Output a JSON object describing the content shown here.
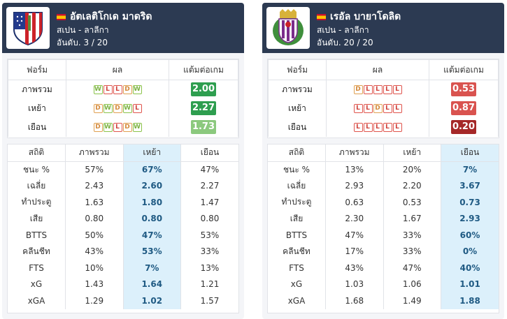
{
  "colors": {
    "header_bg": "#2c3a52",
    "highlight_col": "#dcf0fb",
    "win": "#7cb342",
    "draw": "#d4893a",
    "loss": "#d0413a"
  },
  "team_a": {
    "name": "อัตเลติโกเด มาดริด",
    "league": "สเปน - ลาลีกา",
    "rank": "อันดับ. 3 / 20",
    "logo_icon": "atletico-madrid-crest-icon",
    "form_headers": [
      "ฟอร์ม",
      "ผล",
      "แต้มต่อเกม"
    ],
    "form_rows": [
      {
        "label": "ภาพรวม",
        "results": [
          "W",
          "L",
          "L",
          "D",
          "W"
        ],
        "ppg": "2.00",
        "ppg_color": "#2e9e4f"
      },
      {
        "label": "เหย้า",
        "results": [
          "D",
          "W",
          "D",
          "W",
          "L"
        ],
        "ppg": "2.27",
        "ppg_color": "#2e9e4f"
      },
      {
        "label": "เยือน",
        "results": [
          "D",
          "W",
          "L",
          "D",
          "W"
        ],
        "ppg": "1.73",
        "ppg_color": "#8cc97e"
      }
    ],
    "stat_headers": [
      "สถิติ",
      "ภาพรวม",
      "เหย้า",
      "เยือน"
    ],
    "highlight_col": 2,
    "stats": [
      [
        "ชนะ %",
        "57%",
        "67%",
        "47%"
      ],
      [
        "เฉลี่ย",
        "2.43",
        "2.60",
        "2.27"
      ],
      [
        "ทำประตู",
        "1.63",
        "1.80",
        "1.47"
      ],
      [
        "เสีย",
        "0.80",
        "0.80",
        "0.80"
      ],
      [
        "BTTS",
        "50%",
        "47%",
        "53%"
      ],
      [
        "คลีนชีท",
        "43%",
        "53%",
        "33%"
      ],
      [
        "FTS",
        "10%",
        "7%",
        "13%"
      ],
      [
        "xG",
        "1.43",
        "1.64",
        "1.21"
      ],
      [
        "xGA",
        "1.29",
        "1.02",
        "1.57"
      ]
    ]
  },
  "team_b": {
    "name": "เรอัล บายาโดลิด",
    "league": "สเปน - ลาลีกา",
    "rank": "อันดับ. 20 / 20",
    "logo_icon": "real-valladolid-crest-icon",
    "form_headers": [
      "ฟอร์ม",
      "ผล",
      "แต้มต่อเกม"
    ],
    "form_rows": [
      {
        "label": "ภาพรวม",
        "results": [
          "D",
          "L",
          "L",
          "L",
          "L"
        ],
        "ppg": "0.53",
        "ppg_color": "#d9534f"
      },
      {
        "label": "เหย้า",
        "results": [
          "L",
          "L",
          "D",
          "L",
          "L"
        ],
        "ppg": "0.87",
        "ppg_color": "#d9534f"
      },
      {
        "label": "เยือน",
        "results": [
          "L",
          "L",
          "L",
          "L",
          "L"
        ],
        "ppg": "0.20",
        "ppg_color": "#a52828"
      }
    ],
    "stat_headers": [
      "สถิติ",
      "ภาพรวม",
      "เหย้า",
      "เยือน"
    ],
    "highlight_col": 3,
    "stats": [
      [
        "ชนะ %",
        "13%",
        "20%",
        "7%"
      ],
      [
        "เฉลี่ย",
        "2.93",
        "2.20",
        "3.67"
      ],
      [
        "ทำประตู",
        "0.63",
        "0.53",
        "0.73"
      ],
      [
        "เสีย",
        "2.30",
        "1.67",
        "2.93"
      ],
      [
        "BTTS",
        "47%",
        "33%",
        "60%"
      ],
      [
        "คลีนชีท",
        "17%",
        "33%",
        "0%"
      ],
      [
        "FTS",
        "43%",
        "47%",
        "40%"
      ],
      [
        "xG",
        "1.03",
        "1.06",
        "1.01"
      ],
      [
        "xGA",
        "1.68",
        "1.49",
        "1.88"
      ]
    ]
  }
}
